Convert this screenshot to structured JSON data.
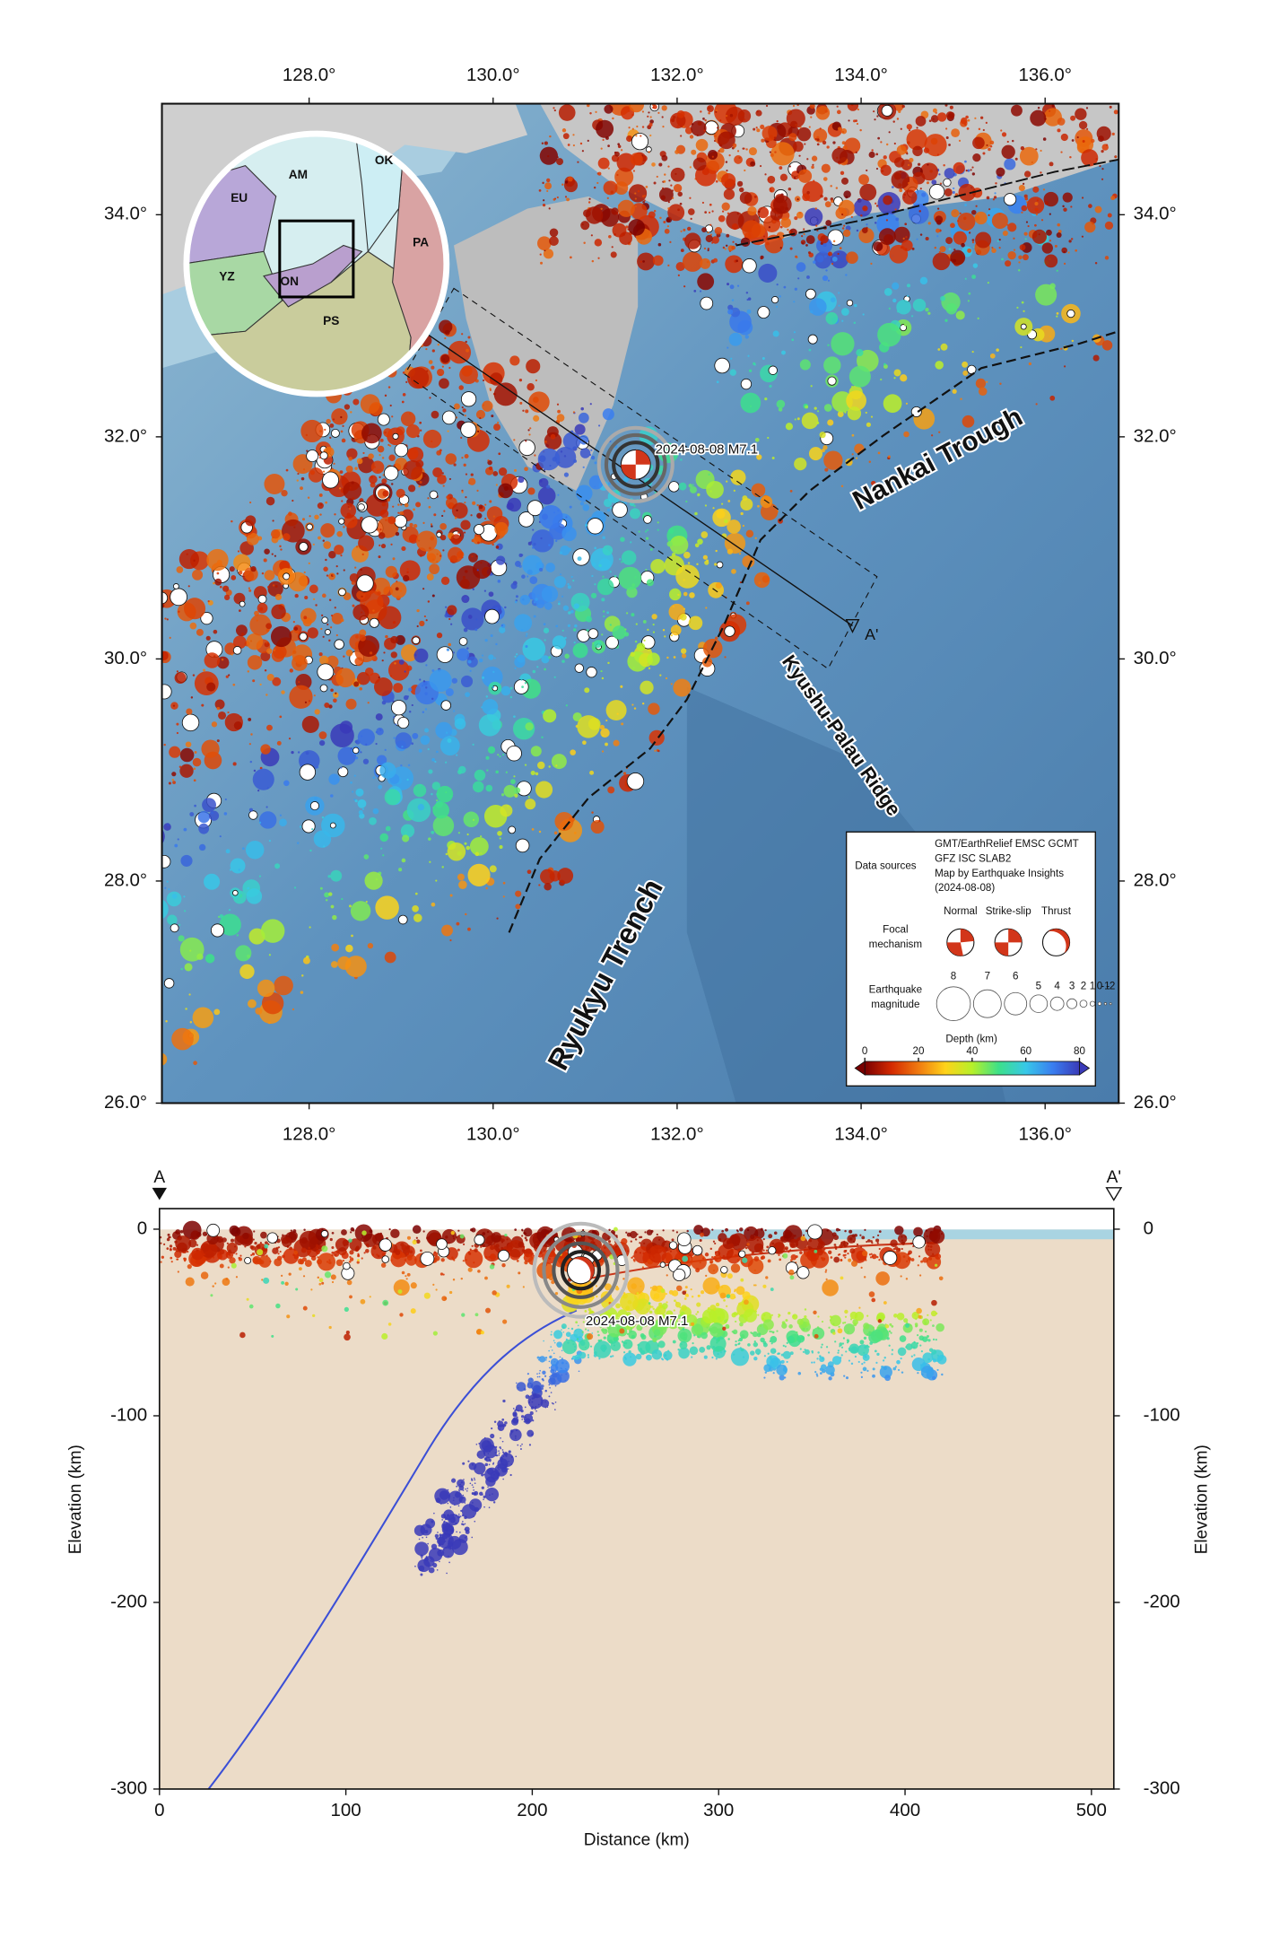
{
  "map": {
    "lonlim": [
      126.4,
      136.8
    ],
    "latlim": [
      26,
      35
    ],
    "lonticks": [
      {
        "value": 128,
        "label": "128.0°"
      },
      {
        "value": 130,
        "label": "130.0°"
      },
      {
        "value": 132,
        "label": "132.0°"
      },
      {
        "value": 134,
        "label": "134.0°"
      },
      {
        "value": 136,
        "label": "136.0°"
      }
    ],
    "latticks": [
      {
        "value": 26,
        "label": "26.0°"
      },
      {
        "value": 28,
        "label": "28.0°"
      },
      {
        "value": 30,
        "label": "30.0°"
      },
      {
        "value": 32,
        "label": "32.0°"
      },
      {
        "value": 34,
        "label": "34.0°"
      }
    ],
    "labels": {
      "nankai": "Nankai Trough",
      "kyushu_palau": "Kyushu-Palau Ridge",
      "ryukyu": "Ryukyu Trench"
    },
    "event": {
      "lon": 131.55,
      "lat": 31.75,
      "label": "2024-08-08 M7.1"
    },
    "profile_end": "A'",
    "inset_plates": [
      "EU",
      "AM",
      "OK",
      "PA",
      "YZ",
      "ON",
      "PS"
    ]
  },
  "legend": {
    "sources_title": "Data sources",
    "sources": [
      "GMT/EarthRelief EMSC GCMT",
      "GFZ ISC SLAB2",
      "Map by Earthquake Insights",
      "(2024-08-08)"
    ],
    "focal_title": [
      "Focal",
      "mechanism"
    ],
    "focal_types": [
      "Normal",
      "Strike-slip",
      "Thrust"
    ],
    "magnitude_title": [
      "Earthquake",
      "magnitude"
    ],
    "magnitudes": [
      8,
      7,
      6,
      5,
      4,
      3,
      2,
      1,
      0,
      -1,
      -2
    ],
    "depth_title": "Depth (km)",
    "depth_lim": [
      0,
      80
    ],
    "depth_ticks": [
      0,
      20,
      40,
      60,
      80
    ],
    "colormap": [
      "#7a0000",
      "#d42a00",
      "#f07a10",
      "#ffd21a",
      "#b6f02a",
      "#3ce08a",
      "#38c8e8",
      "#3a7ef0",
      "#3a3ab8"
    ]
  },
  "section": {
    "xlim": [
      0,
      512
    ],
    "ylim": [
      -300,
      11
    ],
    "xticks": [
      0,
      100,
      200,
      300,
      400,
      500
    ],
    "yticks": [
      0,
      -100,
      -200,
      -300
    ],
    "xlabel": "Distance (km)",
    "ylabel": "Elevation (km)",
    "start": "A",
    "end": "A'",
    "event": {
      "distance": 226,
      "depth": -22,
      "label": "2024-08-08 M7.1"
    }
  }
}
